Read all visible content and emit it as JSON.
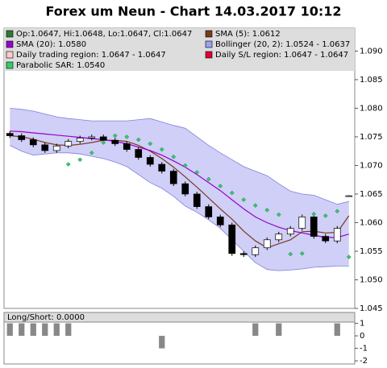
{
  "chart_data": {
    "type": "candlestick",
    "title": "Forex um Neun - Chart 14.03.2017 10:12",
    "candles": {
      "name": "Op:1.0647, Hi:1.0648, Lo:1.0647, Cl:1.0647",
      "color": "#2e7d32",
      "up_color": "#ffffff",
      "down_color": "#000000",
      "open": [
        1.0756,
        1.0752,
        1.0745,
        1.0736,
        1.0726,
        1.0734,
        1.0742,
        1.0748,
        1.075,
        1.0744,
        1.0738,
        1.0728,
        1.0714,
        1.0702,
        1.069,
        1.0668,
        1.065,
        1.0628,
        1.061,
        1.0596,
        1.0546,
        1.0544,
        1.0556,
        1.057,
        1.058,
        1.059,
        1.061,
        1.0576,
        1.0568,
        1.0647
      ],
      "high": [
        1.076,
        1.0756,
        1.0749,
        1.074,
        1.0738,
        1.0746,
        1.0752,
        1.0754,
        1.0754,
        1.0748,
        1.0742,
        1.0732,
        1.0718,
        1.0706,
        1.0694,
        1.0672,
        1.0654,
        1.0632,
        1.0614,
        1.06,
        1.055,
        1.056,
        1.0574,
        1.0584,
        1.0594,
        1.0614,
        1.0614,
        1.058,
        1.0594,
        1.0648
      ],
      "low": [
        1.0748,
        1.0741,
        1.0732,
        1.0722,
        1.0722,
        1.073,
        1.0738,
        1.0744,
        1.074,
        1.0734,
        1.0724,
        1.071,
        1.0698,
        1.0686,
        1.0664,
        1.0646,
        1.0624,
        1.0606,
        1.0592,
        1.0542,
        1.054,
        1.054,
        1.0552,
        1.0566,
        1.0576,
        1.0586,
        1.0572,
        1.0564,
        1.0564,
        1.0647
      ],
      "close": [
        1.0752,
        1.0745,
        1.0736,
        1.0726,
        1.0734,
        1.0742,
        1.0748,
        1.075,
        1.0744,
        1.0738,
        1.0728,
        1.0714,
        1.0702,
        1.069,
        1.0668,
        1.065,
        1.0628,
        1.061,
        1.0596,
        1.0546,
        1.0544,
        1.0556,
        1.057,
        1.058,
        1.059,
        1.061,
        1.0576,
        1.0568,
        1.059,
        1.0647
      ]
    },
    "series": [
      {
        "name": "SMA (5): 1.0612",
        "color": "#7a3b1e",
        "values": [
          1.0752,
          1.075,
          1.0746,
          1.074,
          1.0736,
          1.0735,
          1.0737,
          1.074,
          1.0744,
          1.0744,
          1.0742,
          1.0735,
          1.0725,
          1.0712,
          1.0697,
          1.068,
          1.0662,
          1.0643,
          1.0624,
          1.0606,
          1.0585,
          1.0568,
          1.0556,
          1.0563,
          1.057,
          1.0584,
          1.0585,
          1.0582,
          1.0583,
          1.0612
        ]
      },
      {
        "name": "SMA (20): 1.0580",
        "color": "#9900cc",
        "values": [
          1.076,
          1.0759,
          1.0757,
          1.0755,
          1.0753,
          1.0751,
          1.0749,
          1.0747,
          1.0745,
          1.0742,
          1.0738,
          1.0732,
          1.0726,
          1.0718,
          1.0708,
          1.0697,
          1.0684,
          1.067,
          1.0656,
          1.064,
          1.0624,
          1.061,
          1.06,
          1.0592,
          1.0586,
          1.0582,
          1.0578,
          1.0574,
          1.0574,
          1.058
        ]
      },
      {
        "name": "Bollinger (20, 2): 1.0524 - 1.0637",
        "color": "#a0a0f0",
        "upper": [
          1.08,
          1.0798,
          1.0795,
          1.079,
          1.0785,
          1.0782,
          1.078,
          1.0778,
          1.0778,
          1.0778,
          1.0778,
          1.078,
          1.0782,
          1.0776,
          1.077,
          1.0765,
          1.075,
          1.0735,
          1.0722,
          1.071,
          1.0698,
          1.069,
          1.0682,
          1.0668,
          1.0655,
          1.065,
          1.0648,
          1.064,
          1.0632,
          1.0637
        ],
        "lower": [
          1.0735,
          1.0725,
          1.0718,
          1.072,
          1.0722,
          1.0722,
          1.072,
          1.0716,
          1.0712,
          1.0706,
          1.0698,
          1.0684,
          1.067,
          1.066,
          1.0646,
          1.0629,
          1.0618,
          1.0605,
          1.059,
          1.057,
          1.055,
          1.053,
          1.0518,
          1.0516,
          1.0517,
          1.0519,
          1.0522,
          1.0523,
          1.0524,
          1.0524
        ]
      },
      {
        "name": "Daily trading region: 1.0647 - 1.0647",
        "color": "#ffcccc"
      },
      {
        "name": "Daily S/L region: 1.0647 - 1.0647",
        "color": "#dd0033"
      },
      {
        "name": "Parabolic SAR: 1.0540",
        "color": "#33cc66",
        "values": [
          null,
          null,
          null,
          null,
          null,
          1.0702,
          1.071,
          1.0722,
          1.074,
          1.0752,
          1.075,
          1.0745,
          1.0738,
          1.0728,
          1.0715,
          1.07,
          1.0688,
          1.0676,
          1.0664,
          1.0652,
          1.064,
          1.063,
          1.0622,
          1.0614,
          1.0545,
          1.0546,
          1.0615,
          1.0612,
          1.062,
          1.054
        ]
      }
    ],
    "ylim": [
      1.045,
      1.094
    ],
    "yticks": [
      1.045,
      {
        "value": 1.05,
        "label": "1.050"
      },
      1.055,
      {
        "value": 1.06,
        "label": "1.060"
      },
      1.065,
      {
        "value": 1.07,
        "label": "1.070"
      },
      1.075,
      {
        "value": 1.08,
        "label": "1.080"
      },
      1.085,
      {
        "value": 1.09,
        "label": "1.090"
      }
    ],
    "subplot": {
      "name": "Long/Short: 0.0000",
      "color": "#888888",
      "values": [
        1,
        1,
        1,
        1,
        1,
        1,
        0,
        0,
        0,
        0,
        0,
        0,
        0,
        -1,
        0,
        0,
        0,
        0,
        0,
        0,
        0,
        1,
        0,
        1,
        0,
        0,
        0,
        0,
        1,
        0
      ],
      "ylim": [
        -2.25,
        1.1
      ],
      "yticks": [
        1,
        0,
        -1,
        -2
      ]
    }
  }
}
